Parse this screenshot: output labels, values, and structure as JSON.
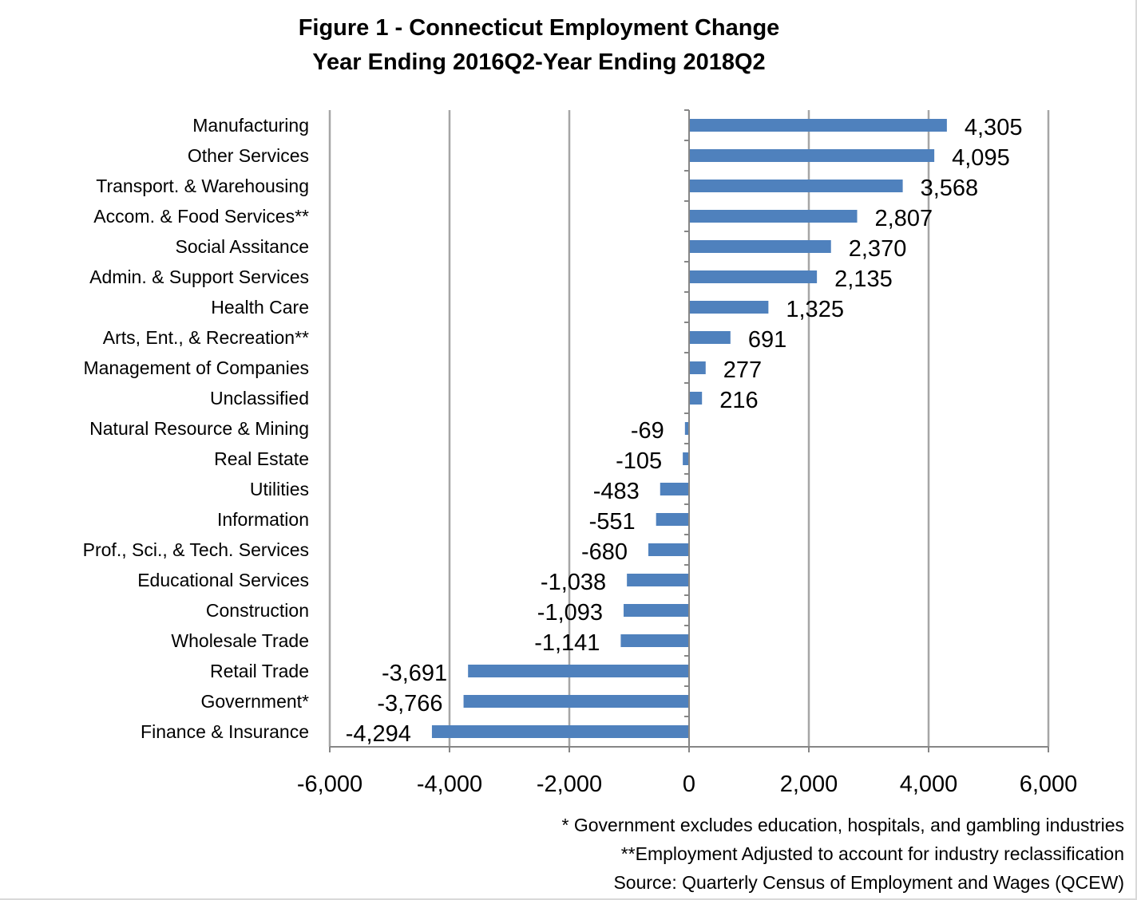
{
  "chart_data": {
    "type": "bar",
    "orientation": "horizontal",
    "title": "Figure 1 - Connecticut Employment Change",
    "subtitle": "Year Ending 2016Q2-Year Ending 2018Q2",
    "categories": [
      "Manufacturing",
      "Other Services",
      "Transport. & Warehousing",
      "Accom. & Food Services**",
      "Social Assitance",
      "Admin. & Support Services",
      "Health Care",
      "Arts, Ent., & Recreation**",
      "Management of Companies",
      "Unclassified",
      "Natural Resource & Mining",
      "Real Estate",
      "Utilities",
      "Information",
      "Prof., Sci., & Tech. Services",
      "Educational Services",
      "Construction",
      "Wholesale Trade",
      "Retail Trade",
      "Government*",
      "Finance & Insurance"
    ],
    "values": [
      4305,
      4095,
      3568,
      2807,
      2370,
      2135,
      1325,
      691,
      277,
      216,
      -69,
      -105,
      -483,
      -551,
      -680,
      -1038,
      -1093,
      -1141,
      -3691,
      -3766,
      -4294
    ],
    "value_labels": [
      "4,305",
      "4,095",
      "3,568",
      "2,807",
      "2,370",
      "2,135",
      "1,325",
      "691",
      "277",
      "216",
      "-69",
      "-105",
      "-483",
      "-551",
      "-680",
      "-1,038",
      "-1,093",
      "-1,141",
      "-3,691",
      "-3,766",
      "-4,294"
    ],
    "xlim": [
      -6000,
      6000
    ],
    "xticks": [
      -6000,
      -4000,
      -2000,
      0,
      2000,
      4000,
      6000
    ],
    "xtick_labels": [
      "-6,000",
      "-4,000",
      "-2,000",
      "0",
      "2,000",
      "4,000",
      "6,000"
    ],
    "xlabel": "",
    "ylabel": "",
    "grid": true,
    "legend": "none",
    "bar_color": "#4f81bd",
    "grid_color": "#a6a6a6"
  },
  "notes": [
    "* Government excludes education, hospitals, and gambling industries",
    "**Employment Adjusted to account for industry reclassification",
    "Source: Quarterly Census of Employment and Wages (QCEW)"
  ]
}
